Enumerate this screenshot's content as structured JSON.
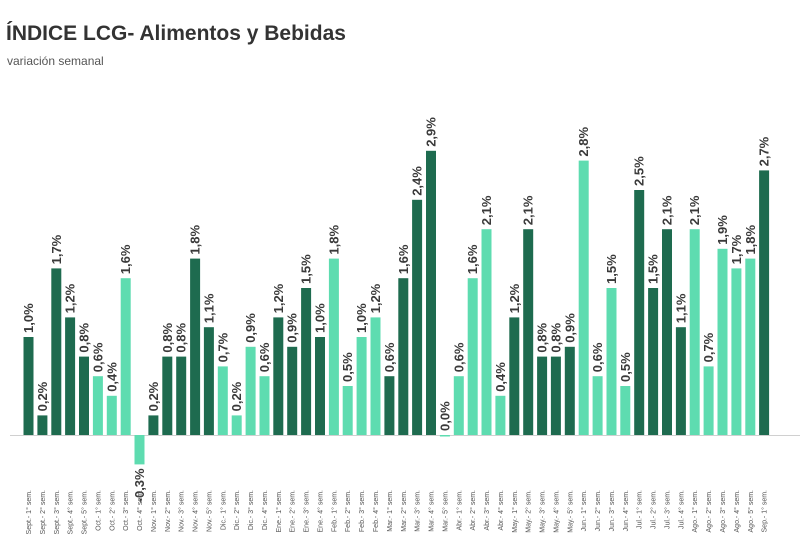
{
  "chart_data": {
    "type": "bar",
    "title": "ÍNDICE LCG- Alimentos y Bebidas",
    "subtitle": "variación semanal",
    "xlabel": "",
    "ylabel": "",
    "ylim": [
      -0.3,
      2.9
    ],
    "colors": {
      "dark": "#1e6b4f",
      "light": "#5edcb0"
    },
    "categories": [
      "Sept.- 1° sem.",
      "Sept.- 2° sem.",
      "Sept.- 3° sem.",
      "Sept.- 4° sem.",
      "Sept.- 5° sem.",
      "Oct.- 1° sem.",
      "Oct.- 2° sem.",
      "Oct.- 3° sem.",
      "Oct.- 4° sem.",
      "Nov.- 1° sem.",
      "Nov.- 2° sem.",
      "Nov.- 3° sem.",
      "Nov.- 4° sem.",
      "Nov.- 5° sem.",
      "Dic.- 1° sem.",
      "Dic.- 2° sem.",
      "Dic.- 3° sem.",
      "Dic.- 4° sem.",
      "Ene.- 1° sem.",
      "Ene.- 2° sem.",
      "Ene.- 3° sem.",
      "Ene.- 4° sem.",
      "Feb.- 1° sem.",
      "Feb.- 2° sem.",
      "Feb.- 3° sem.",
      "Feb.- 4° sem.",
      "Mar.- 1° sem.",
      "Mar.- 2° sem.",
      "Mar.- 3° sem.",
      "Mar.- 4° sem.",
      "Mar.- 5° sem.",
      "Abr.- 1° sem.",
      "Abr.- 2° sem.",
      "Abr.- 3° sem.",
      "Abr.- 4° sem.",
      "May.- 1° sem.",
      "May.- 2° sem.",
      "May.- 3° sem.",
      "May.- 4° sem.",
      "May.- 5° sem.",
      "Jun.- 1° sem.",
      "Jun.- 2° sem.",
      "Jun.- 3° sem.",
      "Jun.- 4° sem.",
      "Jul.- 1° sem.",
      "Jul.- 2° sem.",
      "Jul.- 3° sem.",
      "Jul.- 4° sem.",
      "Ago.- 1° sem.",
      "Ago.- 2° sem.",
      "Ago.- 3° sem.",
      "Ago.- 4° sem.",
      "Ago.- 5° sem.",
      "Sep.- 1° sem."
    ],
    "values": [
      1.0,
      0.2,
      1.7,
      1.2,
      0.8,
      0.6,
      0.4,
      1.6,
      -0.3,
      0.2,
      0.8,
      0.8,
      1.8,
      1.1,
      0.7,
      0.2,
      0.9,
      0.6,
      1.2,
      0.9,
      1.5,
      1.0,
      1.8,
      0.5,
      1.0,
      1.2,
      0.6,
      1.6,
      2.4,
      2.9,
      0.0,
      0.6,
      1.6,
      2.1,
      0.4,
      1.2,
      2.1,
      0.8,
      0.8,
      0.9,
      2.8,
      0.6,
      1.5,
      0.5,
      2.5,
      1.5,
      2.1,
      1.1,
      2.1,
      0.7,
      1.9,
      1.7,
      1.8,
      2.7
    ],
    "labels": [
      "1,0%",
      "0,2%",
      "1,7%",
      "1,2%",
      "0,8%",
      "0,6%",
      "0,4%",
      "1,6%",
      "-0,3%",
      "0,2%",
      "0,8%",
      "0,8%",
      "1,8%",
      "1,1%",
      "0,7%",
      "0,2%",
      "0,9%",
      "0,6%",
      "1,2%",
      "0,9%",
      "1,5%",
      "1,0%",
      "1,8%",
      "0,5%",
      "1,0%",
      "1,2%",
      "0,6%",
      "1,6%",
      "2,4%",
      "2,9%",
      "0,0%",
      "0,6%",
      "1,6%",
      "2,1%",
      "0,4%",
      "1,2%",
      "2,1%",
      "0,8%",
      "0,8%",
      "0,9%",
      "2,8%",
      "0,6%",
      "1,5%",
      "0,5%",
      "2,5%",
      "1,5%",
      "2,1%",
      "1,1%",
      "2,1%",
      "0,7%",
      "1,9%",
      "1,7%",
      "1,8%",
      "2,7%"
    ],
    "shades": [
      "d",
      "d",
      "d",
      "d",
      "d",
      "l",
      "l",
      "l",
      "l",
      "d",
      "d",
      "d",
      "d",
      "d",
      "l",
      "l",
      "l",
      "l",
      "d",
      "d",
      "d",
      "d",
      "l",
      "l",
      "l",
      "l",
      "d",
      "d",
      "d",
      "d",
      "l",
      "l",
      "l",
      "l",
      "l",
      "d",
      "d",
      "d",
      "d",
      "d",
      "l",
      "l",
      "l",
      "l",
      "d",
      "d",
      "d",
      "d",
      "l",
      "l",
      "l",
      "l",
      "l",
      "d"
    ]
  }
}
